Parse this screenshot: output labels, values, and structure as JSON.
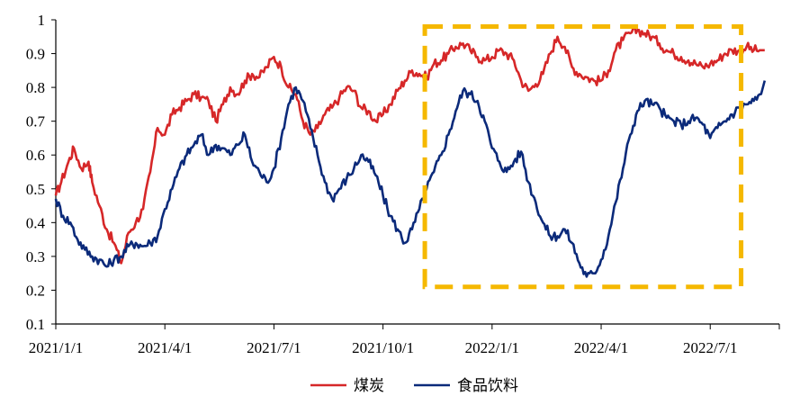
{
  "chart_data": {
    "type": "line",
    "title": "",
    "xlabel": "",
    "ylabel": "",
    "ylim": [
      0.1,
      1.0
    ],
    "yticks": [
      "0.1",
      "0.2",
      "0.3",
      "0.4",
      "0.5",
      "0.6",
      "0.7",
      "0.8",
      "0.9",
      "1"
    ],
    "xticks": [
      "2021/1/1",
      "2021/4/1",
      "2021/7/1",
      "2021/10/1",
      "2022/1/1",
      "2022/4/1",
      "2022/7/1"
    ],
    "legend_position": "bottom-center",
    "grid": false,
    "colors": {
      "coal": "#d62728",
      "food": "#0b2a7a",
      "highlight": "#f5b800"
    },
    "highlight_box": {
      "x_start": 10.15,
      "x_end": 18.85,
      "y_low": 0.21,
      "y_high": 0.98,
      "style": "dashed"
    },
    "series": [
      {
        "name": "煤炭",
        "color": "#d62728",
        "x": [
          0,
          0.15,
          0.35,
          0.5,
          0.7,
          0.9,
          1.0,
          1.2,
          1.4,
          1.6,
          1.8,
          2.0,
          2.2,
          2.4,
          2.6,
          2.8,
          3.0,
          3.2,
          3.4,
          3.6,
          3.8,
          4.0,
          4.2,
          4.4,
          4.6,
          4.8,
          5.0,
          5.2,
          5.4,
          5.6,
          5.8,
          6.0,
          6.2,
          6.4,
          6.6,
          6.8,
          7.0,
          7.2,
          7.4,
          7.6,
          7.8,
          8.0,
          8.2,
          8.4,
          8.6,
          8.8,
          9.0,
          9.2,
          9.4,
          9.6,
          9.8,
          10.0,
          10.2,
          10.4,
          10.6,
          10.8,
          11.0,
          11.2,
          11.4,
          11.6,
          11.8,
          12.0,
          12.2,
          12.4,
          12.6,
          12.8,
          13.0,
          13.2,
          13.4,
          13.6,
          13.8,
          14.0,
          14.2,
          14.4,
          14.6,
          14.8,
          15.0,
          15.2,
          15.4,
          15.6,
          15.8,
          16.0,
          16.2,
          16.4,
          16.6,
          16.8,
          17.0,
          17.2,
          17.4,
          17.6,
          17.8,
          18.0,
          18.2,
          18.4,
          18.6,
          18.8,
          19.0,
          19.2,
          19.4
        ],
        "y": [
          0.48,
          0.52,
          0.58,
          0.62,
          0.56,
          0.58,
          0.52,
          0.45,
          0.38,
          0.34,
          0.28,
          0.37,
          0.4,
          0.44,
          0.55,
          0.68,
          0.66,
          0.72,
          0.74,
          0.76,
          0.78,
          0.77,
          0.76,
          0.7,
          0.75,
          0.8,
          0.78,
          0.82,
          0.84,
          0.83,
          0.86,
          0.89,
          0.86,
          0.8,
          0.78,
          0.7,
          0.66,
          0.68,
          0.72,
          0.74,
          0.77,
          0.8,
          0.79,
          0.74,
          0.73,
          0.7,
          0.72,
          0.75,
          0.79,
          0.82,
          0.85,
          0.84,
          0.83,
          0.87,
          0.88,
          0.9,
          0.92,
          0.93,
          0.91,
          0.89,
          0.88,
          0.89,
          0.91,
          0.9,
          0.88,
          0.82,
          0.79,
          0.81,
          0.84,
          0.9,
          0.95,
          0.92,
          0.86,
          0.84,
          0.83,
          0.82,
          0.82,
          0.85,
          0.91,
          0.94,
          0.96,
          0.97,
          0.96,
          0.95,
          0.93,
          0.91,
          0.9,
          0.89,
          0.88,
          0.87,
          0.86,
          0.87,
          0.88,
          0.9,
          0.91,
          0.91,
          0.92,
          0.91,
          0.91
        ],
        "x_end": 19.5
      },
      {
        "name": "食品饮料",
        "color": "#0b2a7a",
        "x": [
          0,
          0.2,
          0.4,
          0.6,
          0.8,
          1.0,
          1.2,
          1.4,
          1.6,
          1.8,
          2.0,
          2.2,
          2.4,
          2.6,
          2.8,
          3.0,
          3.2,
          3.4,
          3.6,
          3.8,
          4.0,
          4.2,
          4.4,
          4.6,
          4.8,
          5.0,
          5.2,
          5.4,
          5.6,
          5.8,
          6.0,
          6.2,
          6.4,
          6.6,
          6.8,
          7.0,
          7.2,
          7.4,
          7.6,
          7.8,
          8.0,
          8.2,
          8.4,
          8.6,
          8.8,
          9.0,
          9.2,
          9.4,
          9.6,
          9.8,
          10.0,
          10.2,
          10.4,
          10.6,
          10.8,
          11.0,
          11.2,
          11.4,
          11.6,
          11.8,
          12.0,
          12.2,
          12.4,
          12.6,
          12.8,
          13.0,
          13.2,
          13.4,
          13.6,
          13.8,
          14.0,
          14.2,
          14.4,
          14.6,
          14.8,
          15.0,
          15.2,
          15.4,
          15.6,
          15.8,
          16.0,
          16.2,
          16.4,
          16.6,
          16.8,
          17.0,
          17.2,
          17.4,
          17.6,
          17.8,
          18.0,
          18.2,
          18.4,
          18.6,
          18.8,
          19.0,
          19.2,
          19.4
        ],
        "y": [
          0.47,
          0.42,
          0.4,
          0.35,
          0.32,
          0.3,
          0.29,
          0.27,
          0.29,
          0.3,
          0.33,
          0.34,
          0.33,
          0.34,
          0.36,
          0.44,
          0.5,
          0.56,
          0.6,
          0.63,
          0.66,
          0.6,
          0.63,
          0.62,
          0.6,
          0.63,
          0.66,
          0.58,
          0.55,
          0.52,
          0.56,
          0.65,
          0.75,
          0.8,
          0.76,
          0.68,
          0.6,
          0.52,
          0.47,
          0.5,
          0.53,
          0.56,
          0.6,
          0.58,
          0.54,
          0.48,
          0.42,
          0.38,
          0.34,
          0.38,
          0.44,
          0.5,
          0.55,
          0.6,
          0.66,
          0.73,
          0.79,
          0.78,
          0.76,
          0.7,
          0.62,
          0.58,
          0.55,
          0.58,
          0.61,
          0.52,
          0.46,
          0.4,
          0.36,
          0.36,
          0.38,
          0.34,
          0.28,
          0.24,
          0.25,
          0.29,
          0.36,
          0.46,
          0.56,
          0.66,
          0.73,
          0.76,
          0.75,
          0.74,
          0.71,
          0.7,
          0.69,
          0.7,
          0.71,
          0.69,
          0.65,
          0.68,
          0.7,
          0.72,
          0.74,
          0.75,
          0.76,
          0.78
        ],
        "x_end": 19.5,
        "y_end": 0.82
      }
    ]
  }
}
